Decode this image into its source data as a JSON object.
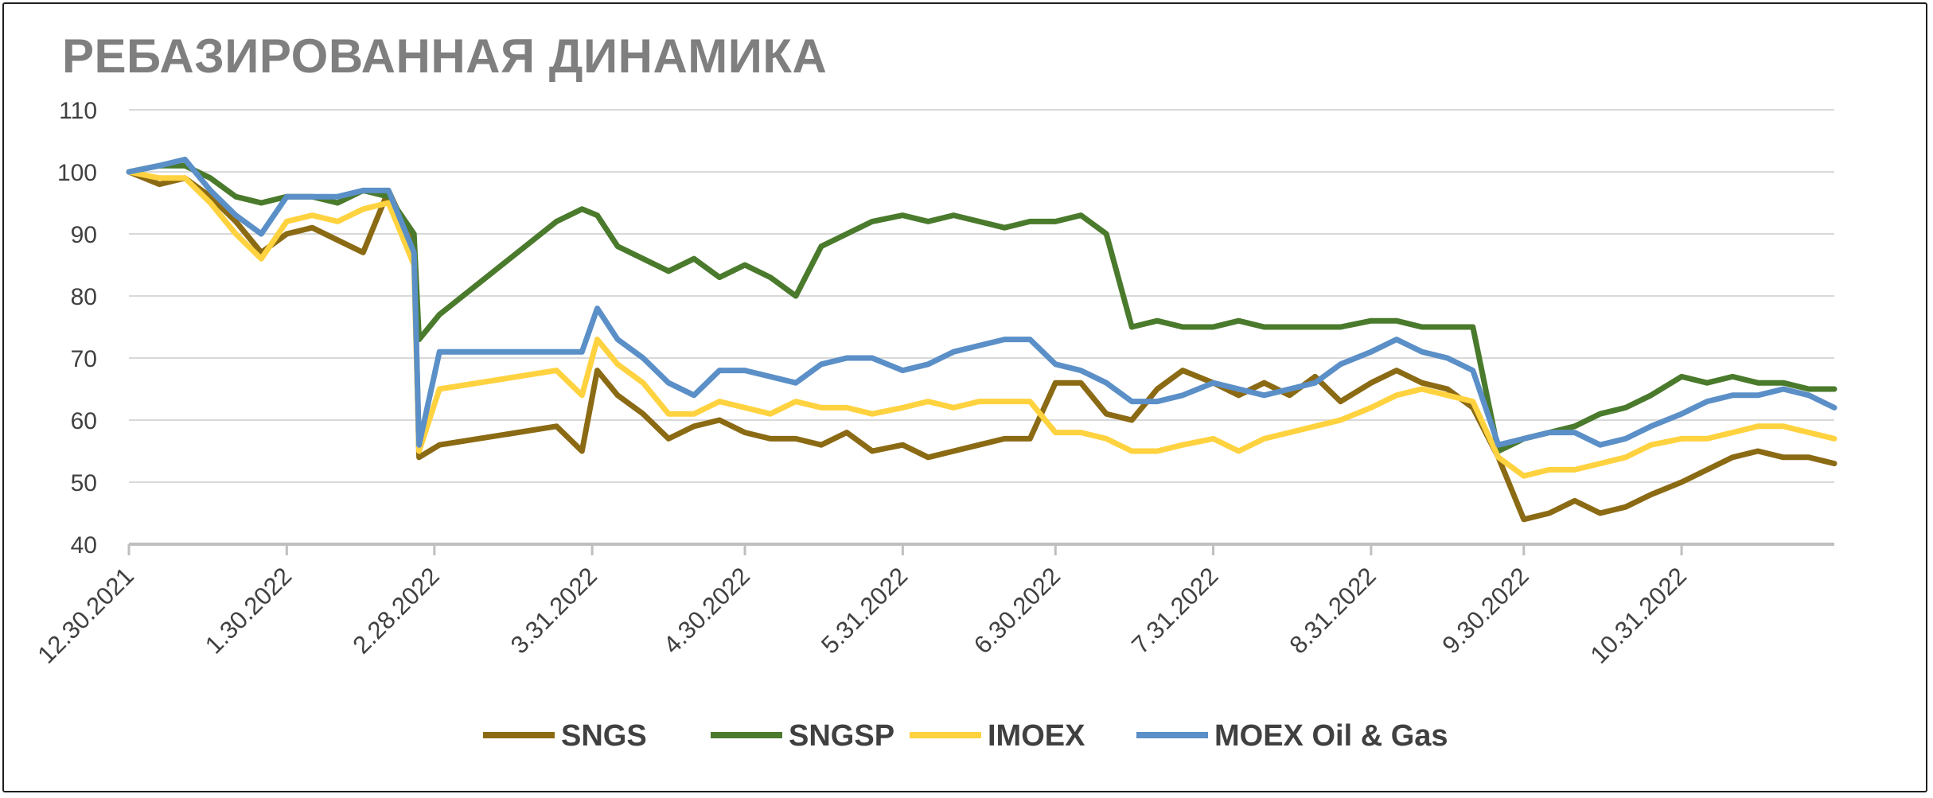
{
  "chart_data": {
    "type": "line",
    "title": "РЕБАЗИРОВАННАЯ ДИНАМИКА",
    "ylim": [
      40,
      110
    ],
    "yticks": [
      "40",
      "50",
      "60",
      "70",
      "80",
      "90",
      "100",
      "110"
    ],
    "xlim": [
      "12.30.2021",
      "11.30.2022"
    ],
    "xticks": [
      "12.30.2021",
      "1.30.2022",
      "2.28.2022",
      "3.31.2022",
      "4.30.2022",
      "5.31.2022",
      "6.30.2022",
      "7.31.2022",
      "8.31.2022",
      "9.30.2022",
      "10.31.2022"
    ],
    "grid": "horizontal",
    "legend_position": "bottom",
    "x": [
      "12.30.2021",
      "1.5.2022",
      "1.10.2022",
      "1.15.2022",
      "1.20.2022",
      "1.25.2022",
      "1.30.2022",
      "2.4.2022",
      "2.9.2022",
      "2.14.2022",
      "2.19.2022",
      "2.24.2022",
      "2.25.2022",
      "3.1.2022",
      "3.24.2022",
      "3.29.2022",
      "4.1.2022",
      "4.5.2022",
      "4.10.2022",
      "4.15.2022",
      "4.20.2022",
      "4.25.2022",
      "4.30.2022",
      "5.5.2022",
      "5.10.2022",
      "5.15.2022",
      "5.20.2022",
      "5.25.2022",
      "5.31.2022",
      "6.5.2022",
      "6.10.2022",
      "6.15.2022",
      "6.20.2022",
      "6.25.2022",
      "6.30.2022",
      "7.5.2022",
      "7.10.2022",
      "7.15.2022",
      "7.20.2022",
      "7.25.2022",
      "7.31.2022",
      "8.5.2022",
      "8.10.2022",
      "8.15.2022",
      "8.20.2022",
      "8.25.2022",
      "8.31.2022",
      "9.5.2022",
      "9.10.2022",
      "9.15.2022",
      "9.20.2022",
      "9.25.2022",
      "9.30.2022",
      "10.5.2022",
      "10.10.2022",
      "10.15.2022",
      "10.20.2022",
      "10.25.2022",
      "10.31.2022",
      "11.5.2022",
      "11.10.2022",
      "11.15.2022",
      "11.20.2022",
      "11.25.2022",
      "11.30.2022"
    ],
    "series": [
      {
        "name": "SNGS",
        "color": "#8B6A14",
        "values": [
          100,
          98,
          99,
          96,
          92,
          87,
          90,
          91,
          89,
          87,
          97,
          88,
          54,
          56,
          59,
          55,
          68,
          64,
          61,
          57,
          59,
          60,
          58,
          57,
          57,
          56,
          58,
          55,
          56,
          54,
          55,
          56,
          57,
          57,
          66,
          66,
          61,
          60,
          65,
          68,
          66,
          64,
          66,
          64,
          67,
          63,
          66,
          68,
          66,
          65,
          62,
          54,
          44,
          45,
          47,
          45,
          46,
          48,
          50,
          52,
          54,
          55,
          54,
          54,
          53
        ]
      },
      {
        "name": "SNGSP",
        "color": "#4A7A2C",
        "values": [
          100,
          101,
          101,
          99,
          96,
          95,
          96,
          96,
          95,
          97,
          96,
          90,
          73,
          77,
          92,
          94,
          93,
          88,
          86,
          84,
          86,
          83,
          85,
          83,
          80,
          88,
          90,
          92,
          93,
          92,
          93,
          92,
          91,
          92,
          92,
          93,
          90,
          75,
          76,
          75,
          75,
          76,
          75,
          75,
          75,
          75,
          76,
          76,
          75,
          75,
          75,
          55,
          57,
          58,
          59,
          61,
          62,
          64,
          67,
          66,
          67,
          66,
          66,
          65,
          65
        ]
      },
      {
        "name": "IMOEX",
        "color": "#FFD23F",
        "values": [
          100,
          99,
          99,
          95,
          90,
          86,
          92,
          93,
          92,
          94,
          95,
          85,
          55,
          65,
          68,
          64,
          73,
          69,
          66,
          61,
          61,
          63,
          62,
          61,
          63,
          62,
          62,
          61,
          62,
          63,
          62,
          63,
          63,
          63,
          58,
          58,
          57,
          55,
          55,
          56,
          57,
          55,
          57,
          58,
          59,
          60,
          62,
          64,
          65,
          64,
          63,
          54,
          51,
          52,
          52,
          53,
          54,
          56,
          57,
          57,
          58,
          59,
          59,
          58,
          57
        ]
      },
      {
        "name": "MOEX Oil & Gas",
        "color": "#5B8FC7",
        "values": [
          100,
          101,
          102,
          97,
          93,
          90,
          96,
          96,
          96,
          97,
          97,
          87,
          56,
          71,
          71,
          71,
          78,
          73,
          70,
          66,
          64,
          68,
          68,
          67,
          66,
          69,
          70,
          70,
          68,
          69,
          71,
          72,
          73,
          73,
          69,
          68,
          66,
          63,
          63,
          64,
          66,
          65,
          64,
          65,
          66,
          69,
          71,
          73,
          71,
          70,
          68,
          56,
          57,
          58,
          58,
          56,
          57,
          59,
          61,
          63,
          64,
          64,
          65,
          64,
          62
        ]
      }
    ]
  }
}
